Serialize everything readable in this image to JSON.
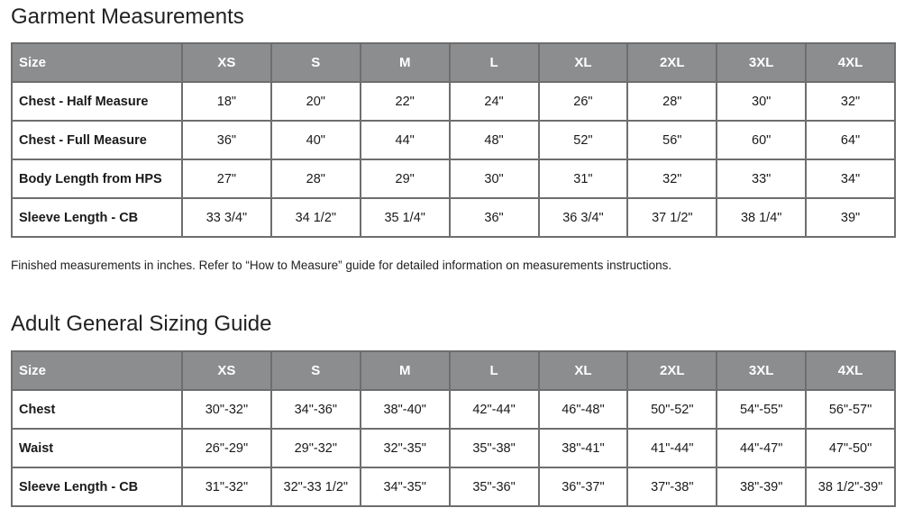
{
  "garment": {
    "title": "Garment Measurements",
    "headers": [
      "Size",
      "XS",
      "S",
      "M",
      "L",
      "XL",
      "2XL",
      "3XL",
      "4XL"
    ],
    "rows": [
      {
        "label": "Chest - Half Measure",
        "values": [
          "18\"",
          "20\"",
          "22\"",
          "24\"",
          "26\"",
          "28\"",
          "30\"",
          "32\""
        ]
      },
      {
        "label": "Chest - Full Measure",
        "values": [
          "36\"",
          "40\"",
          "44\"",
          "48\"",
          "52\"",
          "56\"",
          "60\"",
          "64\""
        ]
      },
      {
        "label": "Body Length from HPS",
        "values": [
          "27\"",
          "28\"",
          "29\"",
          "30\"",
          "31\"",
          "32\"",
          "33\"",
          "34\""
        ]
      },
      {
        "label": "Sleeve Length - CB",
        "values": [
          "33 3/4\"",
          "34 1/2\"",
          "35 1/4\"",
          "36\"",
          "36 3/4\"",
          "37 1/2\"",
          "38 1/4\"",
          "39\""
        ]
      }
    ],
    "note": "Finished measurements in inches. Refer to “How to Measure” guide for detailed information on measurements instructions."
  },
  "sizing": {
    "title": "Adult General Sizing Guide",
    "headers": [
      "Size",
      "XS",
      "S",
      "M",
      "L",
      "XL",
      "2XL",
      "3XL",
      "4XL"
    ],
    "rows": [
      {
        "label": "Chest",
        "values": [
          "30\"-32\"",
          "34\"-36\"",
          "38\"-40\"",
          "42\"-44\"",
          "46\"-48\"",
          "50\"-52\"",
          "54\"-55\"",
          "56\"-57\""
        ]
      },
      {
        "label": "Waist",
        "values": [
          "26\"-29\"",
          "29\"-32\"",
          "32\"-35\"",
          "35\"-38\"",
          "38\"-41\"",
          "41\"-44\"",
          "44\"-47\"",
          "47\"-50\""
        ]
      },
      {
        "label": "Sleeve Length - CB",
        "values": [
          "31\"-32\"",
          "32\"-33 1/2\"",
          "34\"-35\"",
          "35\"-36\"",
          "36\"-37\"",
          "37\"-38\"",
          "38\"-39\"",
          "38 1/2\"-39\""
        ]
      }
    ]
  },
  "colors": {
    "header_bg": "#8c8d8f",
    "header_text": "#ffffff",
    "border": "#6e6e6e"
  }
}
